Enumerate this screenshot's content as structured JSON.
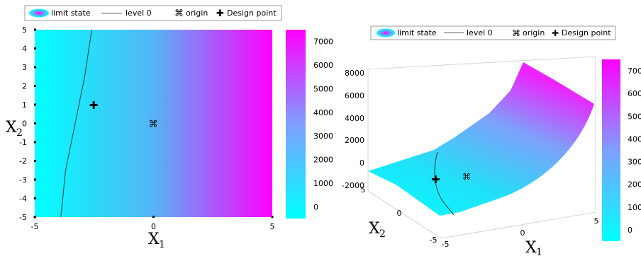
{
  "chart_data": [
    {
      "type": "heatmap",
      "title": "",
      "xlabel": "X",
      "xlabel_sub": "1",
      "ylabel": "X",
      "ylabel_sub": "2",
      "xlim": [
        -5,
        5
      ],
      "ylim": [
        -5,
        5
      ],
      "xticks": [
        "-5",
        "0",
        "5"
      ],
      "yticks": [
        "5",
        "4",
        "3",
        "2",
        "1",
        "0",
        "-1",
        "-2",
        "-3",
        "-4",
        "-5"
      ],
      "colorbar": {
        "min": -500,
        "max": 7500,
        "ticks": [
          "7000",
          "6000",
          "5000",
          "4000",
          "3000",
          "2000",
          "1000",
          "0"
        ],
        "colors": [
          "#00ffff",
          "#ff00ff"
        ]
      },
      "limit_state_curve": {
        "x": [
          -2.6,
          -2.9,
          -3.3,
          -3.7,
          -3.9
        ],
        "y": [
          5,
          2.5,
          0,
          -2.5,
          -5
        ]
      },
      "origin": {
        "x": 0,
        "y": 0
      },
      "design_point": {
        "x": -2.5,
        "y": 1
      },
      "legend": {
        "position": "top",
        "entries": [
          "limit state",
          "level 0",
          "origin",
          "Design point"
        ]
      }
    },
    {
      "type": "surface",
      "title": "",
      "xlabel": "X",
      "xlabel_sub": "1",
      "ylabel": "X",
      "ylabel_sub": "2",
      "zticks": [
        "8000",
        "6000",
        "4000",
        "2000",
        "0",
        "-2000"
      ],
      "xticks": [
        "-5",
        "0",
        "5"
      ],
      "yticks": [
        "5",
        "0",
        "-5"
      ],
      "colorbar": {
        "min": -500,
        "max": 7500,
        "ticks": [
          "7000",
          "6000",
          "5000",
          "4000",
          "3000",
          "2000",
          "1000",
          "0"
        ],
        "colors": [
          "#00ffff",
          "#ff00ff"
        ]
      },
      "legend": {
        "position": "top",
        "entries": [
          "limit state",
          "level 0",
          "origin",
          "Design point"
        ]
      }
    }
  ]
}
